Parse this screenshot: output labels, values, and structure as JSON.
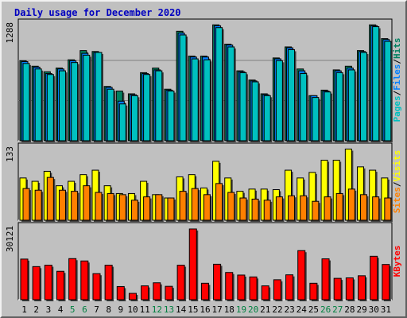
{
  "title": "Daily usage for December 2020",
  "colors": {
    "title": "#0000c0",
    "hits": "#008060",
    "files": "#0080ff",
    "pages": "#00c0c0",
    "visits": "#ffff00",
    "sites": "#ff8000",
    "kbytes": "#ff0000",
    "weekend": "#008040",
    "weekday": "#000000",
    "panel_bg": "#c0c0c0",
    "grid": "#808080"
  },
  "chart_data": [
    {
      "type": "bar",
      "name": "hits-files-pages",
      "y_max_label": "1288",
      "ylim": [
        0,
        1288
      ],
      "legend": [
        "Pages",
        "/",
        "Files",
        "/",
        "Hits"
      ],
      "categories": [
        "1",
        "2",
        "3",
        "4",
        "5",
        "6",
        "7",
        "8",
        "9",
        "10",
        "11",
        "12",
        "13",
        "14",
        "15",
        "16",
        "17",
        "18",
        "19",
        "20",
        "21",
        "22",
        "23",
        "24",
        "25",
        "26",
        "27",
        "28",
        "29",
        "30",
        "31"
      ],
      "series": [
        {
          "name": "Hits",
          "values": [
            870,
            810,
            750,
            790,
            880,
            980,
            970,
            590,
            540,
            510,
            740,
            790,
            560,
            1190,
            920,
            920,
            1260,
            1050,
            760,
            660,
            510,
            900,
            1020,
            780,
            490,
            550,
            770,
            810,
            980,
            1260,
            1110
          ]
        },
        {
          "name": "Files",
          "values": [
            860,
            800,
            730,
            780,
            870,
            950,
            960,
            580,
            430,
            500,
            730,
            770,
            550,
            1170,
            910,
            910,
            1250,
            1040,
            750,
            650,
            500,
            890,
            1010,
            760,
            490,
            540,
            760,
            790,
            970,
            1250,
            1100
          ]
        },
        {
          "name": "Pages",
          "values": [
            840,
            780,
            720,
            760,
            850,
            930,
            960,
            560,
            400,
            490,
            720,
            760,
            540,
            1150,
            890,
            880,
            1230,
            1020,
            740,
            640,
            490,
            870,
            990,
            730,
            470,
            530,
            740,
            770,
            960,
            1240,
            1080
          ]
        }
      ]
    },
    {
      "type": "bar",
      "name": "visits-sites",
      "y_max_label": "133",
      "ylim": [
        0,
        133
      ],
      "legend": [
        "Sites",
        "/",
        "Visits"
      ],
      "categories": [
        "1",
        "2",
        "3",
        "4",
        "5",
        "6",
        "7",
        "8",
        "9",
        "10",
        "11",
        "12",
        "13",
        "14",
        "15",
        "16",
        "17",
        "18",
        "19",
        "20",
        "21",
        "22",
        "23",
        "24",
        "25",
        "26",
        "27",
        "28",
        "29",
        "30",
        "31"
      ],
      "series": [
        {
          "name": "Visits",
          "values": [
            76,
            70,
            88,
            62,
            70,
            82,
            90,
            62,
            48,
            48,
            70,
            46,
            40,
            78,
            82,
            58,
            106,
            76,
            52,
            56,
            56,
            55,
            90,
            76,
            86,
            108,
            108,
            128,
            96,
            90,
            76
          ]
        },
        {
          "name": "Sites",
          "values": [
            57,
            54,
            77,
            54,
            52,
            62,
            50,
            48,
            46,
            36,
            42,
            46,
            40,
            52,
            57,
            46,
            66,
            50,
            40,
            38,
            36,
            42,
            44,
            44,
            34,
            42,
            48,
            56,
            46,
            42,
            40
          ]
        }
      ]
    },
    {
      "type": "bar",
      "name": "kbytes",
      "y_max_label": "30121",
      "ylim": [
        0,
        30121
      ],
      "legend": [
        "KBytes"
      ],
      "categories": [
        "1",
        "2",
        "3",
        "4",
        "5",
        "6",
        "7",
        "8",
        "9",
        "10",
        "11",
        "12",
        "13",
        "14",
        "15",
        "16",
        "17",
        "18",
        "19",
        "20",
        "21",
        "22",
        "23",
        "24",
        "25",
        "26",
        "27",
        "28",
        "29",
        "30",
        "31"
      ],
      "series": [
        {
          "name": "KBytes",
          "values": [
            17300,
            14100,
            14700,
            12100,
            17500,
            16500,
            11100,
            14700,
            5600,
            2700,
            5900,
            7200,
            5700,
            14700,
            30121,
            7000,
            15100,
            11600,
            10500,
            9700,
            5900,
            8500,
            10600,
            20900,
            7000,
            17400,
            9100,
            9300,
            10200,
            18500,
            15000
          ]
        }
      ]
    }
  ]
}
